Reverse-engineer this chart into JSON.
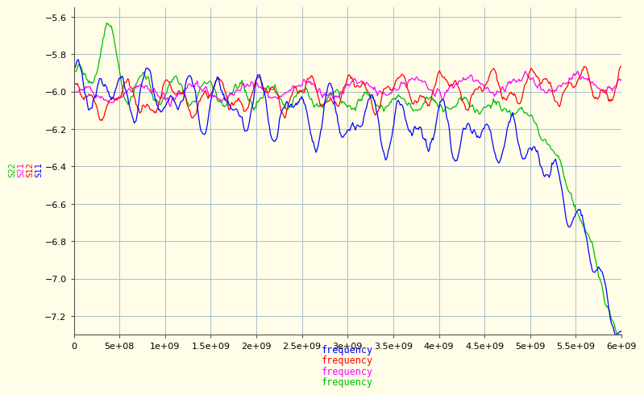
{
  "background_color": "#FFFDE8",
  "grid_color": "#AABBCC",
  "xlim": [
    0,
    6000000000.0
  ],
  "ylim": [
    -7.3,
    -5.55
  ],
  "xticks": [
    0,
    500000000.0,
    1000000000.0,
    1500000000.0,
    2000000000.0,
    2500000000.0,
    3000000000.0,
    3500000000.0,
    4000000000.0,
    4500000000.0,
    5000000000.0,
    5500000000.0,
    6000000000.0
  ],
  "yticks": [
    -7.2,
    -7.0,
    -6.8,
    -6.6,
    -6.4,
    -6.2,
    -6.0,
    -5.8,
    -5.6
  ],
  "series": [
    {
      "label": "S11",
      "color": "#0000FF"
    },
    {
      "label": "S12",
      "color": "#FF0000"
    },
    {
      "label": "S21",
      "color": "#FF00FF"
    },
    {
      "label": "S22",
      "color": "#00BB00"
    }
  ],
  "xlabels": [
    {
      "text": "frequency",
      "color": "#0000FF"
    },
    {
      "text": "frequency",
      "color": "#FF0000"
    },
    {
      "text": "frequency",
      "color": "#FF00FF"
    },
    {
      "text": "frequency",
      "color": "#00BB00"
    }
  ],
  "ylabel_labels": [
    {
      "text": "S22",
      "color": "#00BB00"
    },
    {
      "text": "S21",
      "color": "#FF00FF"
    },
    {
      "text": "S12",
      "color": "#FF0000"
    },
    {
      "text": "S11",
      "color": "#0000FF"
    }
  ]
}
